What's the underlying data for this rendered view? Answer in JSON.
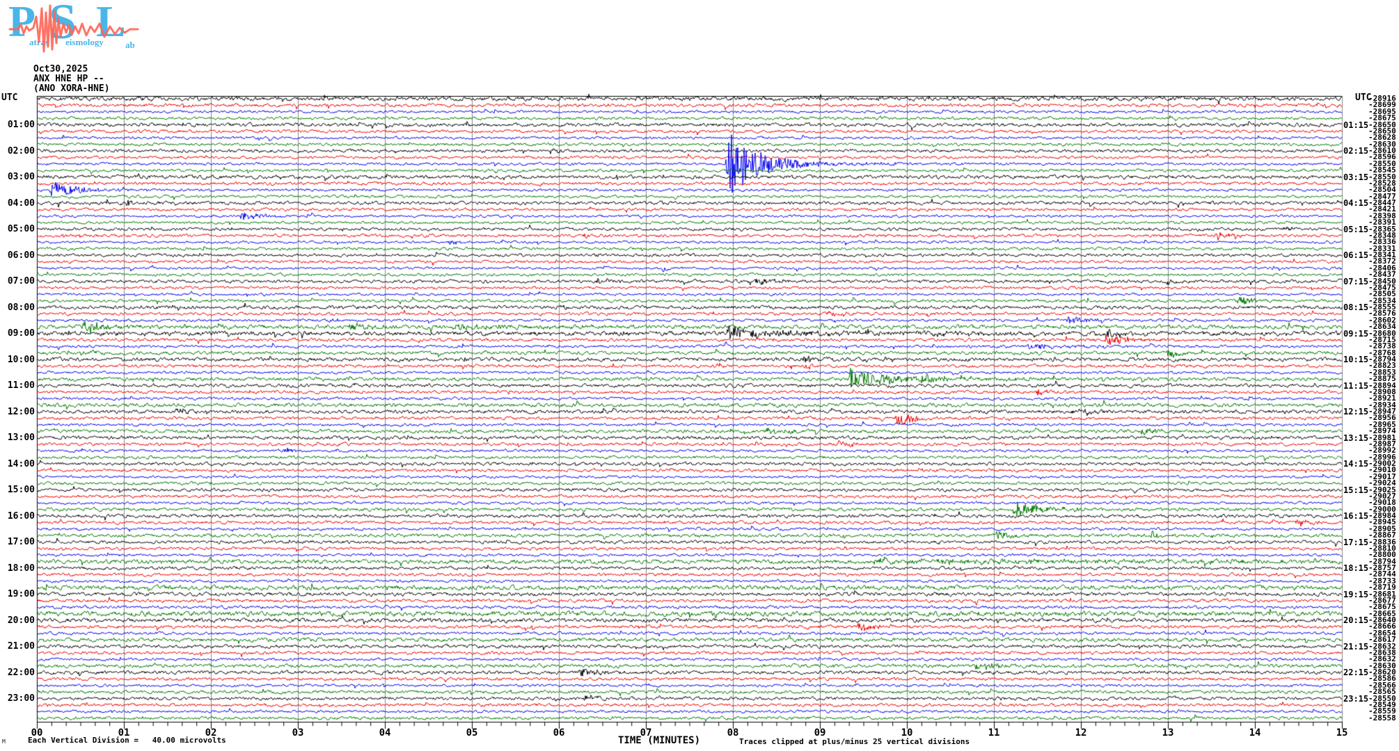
{
  "logo": {
    "letters": [
      "P",
      "S",
      "L"
    ],
    "word_parts": [
      "atras",
      "eismology",
      "ab"
    ]
  },
  "header": {
    "date": "Oct30,2025",
    "station": "ANX HNE HP --",
    "station_alt": "(ANO XORA-HNE)"
  },
  "corner_labels": {
    "utc_left": "UTC",
    "utc_right": "UTC"
  },
  "x_axis": {
    "title": "TIME (MINUTES)",
    "tick_labels": [
      "00",
      "01",
      "02",
      "03",
      "04",
      "05",
      "06",
      "07",
      "08",
      "09",
      "10",
      "11",
      "12",
      "13",
      "14",
      "15"
    ]
  },
  "footer": {
    "mark": "M",
    "scale_note": "Each Vertical Division =   40.00 microvolts",
    "clip_note": "Traces clipped at plus/minus 25 vertical divisions"
  },
  "left_time_labels": [
    "01:00",
    "02:00",
    "03:00",
    "04:00",
    "05:00",
    "06:00",
    "07:00",
    "08:00",
    "09:00",
    "10:00",
    "11:00",
    "12:00",
    "13:00",
    "14:00",
    "15:00",
    "16:00",
    "17:00",
    "18:00",
    "19:00",
    "20:00",
    "21:00",
    "22:00",
    "23:00"
  ],
  "right_time_labels": [
    "01:15",
    "02:15",
    "03:15",
    "04:15",
    "05:15",
    "06:15",
    "07:15",
    "08:15",
    "09:15",
    "10:15",
    "11:15",
    "12:15",
    "13:15",
    "14:15",
    "15:15",
    "16:15",
    "17:15",
    "18:15",
    "19:15",
    "20:15",
    "21:15",
    "22:15",
    "23:15"
  ],
  "chart_data": {
    "type": "line",
    "subtype": "helicorder-seismogram",
    "description": "24-hour webicorder record, 96 traces of 15 minutes each, four traces per hour",
    "trace_count": 96,
    "minutes_per_trace": 15,
    "trace_colors_cycle": [
      "#000000",
      "#ee0000",
      "#0000ee",
      "#007700"
    ],
    "grid_color": "#888888",
    "x_range_minutes": [
      0,
      15
    ],
    "minor_tick_seconds": 10,
    "trace_offsets": [
      -28916,
      -28699,
      -28695,
      -28675,
      -28650,
      -28650,
      -28628,
      -28630,
      -28610,
      -28596,
      -28550,
      -28545,
      -28550,
      -28528,
      -28504,
      -28477,
      -28447,
      -28421,
      -28398,
      -28391,
      -28365,
      -28348,
      -28336,
      -28331,
      -28341,
      -28372,
      -28406,
      -28437,
      -28450,
      -28475,
      -28505,
      -28534,
      -28555,
      -28576,
      -28602,
      -28634,
      -28680,
      -28715,
      -28738,
      -28768,
      -28794,
      -28823,
      -28853,
      -28875,
      -28894,
      -28908,
      -28921,
      -28934,
      -28947,
      -28956,
      -28965,
      -28974,
      -28981,
      -28987,
      -28992,
      -28996,
      -29002,
      -29010,
      -29017,
      -29024,
      -29025,
      -29027,
      -29018,
      -29000,
      -28984,
      -28945,
      -28905,
      -28867,
      -28836,
      -28810,
      -28800,
      -28794,
      -28757,
      -28744,
      -28733,
      -28719,
      -28681,
      -28677,
      -28675,
      -28665,
      -28640,
      -28666,
      -28654,
      -28617,
      -28632,
      -28638,
      -28632,
      -28630,
      -28620,
      -28586,
      -28566,
      -28565,
      -28550,
      -28549,
      -28559,
      -28558
    ],
    "noise_amp": [
      2.2,
      1.7,
      1.4,
      1.5,
      1.9,
      1.5,
      1.4,
      1.5,
      1.7,
      1.5,
      1.4,
      1.5,
      1.9,
      1.6,
      1.4,
      1.5,
      1.8,
      1.5,
      1.3,
      1.4,
      1.6,
      1.6,
      1.3,
      1.5,
      1.6,
      1.5,
      1.3,
      1.5,
      1.7,
      1.5,
      1.3,
      1.6,
      1.9,
      1.6,
      1.4,
      2.2,
      2.4,
      1.7,
      1.5,
      1.8,
      2.0,
      1.7,
      1.4,
      1.9,
      1.8,
      1.6,
      1.5,
      2.0,
      1.9,
      1.6,
      1.4,
      1.8,
      1.8,
      1.6,
      1.4,
      1.6,
      1.7,
      1.6,
      1.3,
      1.6,
      1.7,
      1.6,
      1.4,
      1.8,
      1.8,
      1.6,
      1.4,
      1.8,
      1.7,
      1.6,
      1.4,
      2.2,
      1.7,
      1.6,
      1.4,
      2.4,
      1.9,
      1.7,
      1.6,
      2.6,
      2.1,
      1.7,
      1.5,
      2.0,
      1.8,
      1.6,
      1.4,
      1.9,
      1.8,
      1.6,
      1.4,
      1.7,
      1.7,
      1.6,
      1.4,
      1.6
    ],
    "events": [
      {
        "trace": 8,
        "t0": 5.9,
        "amp": 3,
        "decay": 0.15
      },
      {
        "trace": 10,
        "t0": 7.95,
        "amp": 46,
        "decay": 0.3,
        "coda_amp": 5,
        "coda_decay": 1.1
      },
      {
        "trace": 14,
        "t0": 0.18,
        "amp": 13,
        "decay": 0.3
      },
      {
        "trace": 16,
        "t0": 0.25,
        "amp": 4,
        "decay": 0.06
      },
      {
        "trace": 16,
        "t0": 1.05,
        "amp": 4,
        "decay": 0.06
      },
      {
        "trace": 18,
        "t0": 2.35,
        "amp": 6,
        "decay": 0.22
      },
      {
        "trace": 20,
        "t0": 14.35,
        "amp": 4,
        "decay": 0.1
      },
      {
        "trace": 21,
        "t0": 0.3,
        "amp": 4,
        "decay": 0.1
      },
      {
        "trace": 21,
        "t0": 6.3,
        "amp": 4,
        "decay": 0.1
      },
      {
        "trace": 21,
        "t0": 13.55,
        "amp": 6,
        "decay": 0.2
      },
      {
        "trace": 22,
        "t0": 4.75,
        "amp": 4,
        "decay": 0.12
      },
      {
        "trace": 26,
        "t0": 7.2,
        "amp": 4,
        "decay": 0.15
      },
      {
        "trace": 28,
        "t0": 6.45,
        "amp": 5,
        "decay": 0.15
      },
      {
        "trace": 28,
        "t0": 8.2,
        "amp": 5,
        "decay": 0.3
      },
      {
        "trace": 28,
        "t0": 13.0,
        "amp": 4,
        "decay": 0.12
      },
      {
        "trace": 31,
        "t0": 13.8,
        "amp": 7,
        "decay": 0.2
      },
      {
        "trace": 32,
        "t0": 1.5,
        "amp": 4,
        "decay": 0.12
      },
      {
        "trace": 32,
        "t0": 6.05,
        "amp": 4,
        "decay": 0.1
      },
      {
        "trace": 33,
        "t0": 9.1,
        "amp": 6,
        "decay": 0.15
      },
      {
        "trace": 34,
        "t0": 3.4,
        "amp": 4,
        "decay": 0.1
      },
      {
        "trace": 34,
        "t0": 11.85,
        "amp": 6,
        "decay": 0.2
      },
      {
        "trace": 35,
        "t0": 0.55,
        "amp": 9,
        "decay": 0.25
      },
      {
        "trace": 35,
        "t0": 3.6,
        "amp": 6,
        "decay": 0.2
      },
      {
        "trace": 35,
        "t0": 4.8,
        "amp": 3,
        "decay": 0.9
      },
      {
        "trace": 36,
        "t0": 7.95,
        "amp": 8,
        "decay": 0.3,
        "coda_amp": 3,
        "coda_decay": 2.5
      },
      {
        "trace": 36,
        "t0": 12.3,
        "amp": 7,
        "decay": 0.2
      },
      {
        "trace": 37,
        "t0": 12.3,
        "amp": 10,
        "decay": 0.25
      },
      {
        "trace": 38,
        "t0": 11.4,
        "amp": 4,
        "decay": 0.4
      },
      {
        "trace": 39,
        "t0": 0.5,
        "amp": 4,
        "decay": 0.15
      },
      {
        "trace": 39,
        "t0": 13.0,
        "amp": 5,
        "decay": 0.15
      },
      {
        "trace": 40,
        "t0": 8.8,
        "amp": 5,
        "decay": 0.2
      },
      {
        "trace": 41,
        "t0": 8.85,
        "amp": 4,
        "decay": 0.1
      },
      {
        "trace": 43,
        "t0": 9.35,
        "amp": 14,
        "decay": 0.3,
        "coda_amp": 4,
        "coda_decay": 1.0
      },
      {
        "trace": 43,
        "t0": 10.15,
        "amp": 6,
        "decay": 0.4
      },
      {
        "trace": 45,
        "t0": 11.5,
        "amp": 5,
        "decay": 0.12
      },
      {
        "trace": 48,
        "t0": 1.6,
        "amp": 5,
        "decay": 0.15
      },
      {
        "trace": 48,
        "t0": 11.9,
        "amp": 3,
        "decay": 0.3
      },
      {
        "trace": 49,
        "t0": 9.9,
        "amp": 14,
        "decay": 0.15,
        "bias": -0.8
      },
      {
        "trace": 51,
        "t0": 8.4,
        "amp": 4,
        "decay": 0.25
      },
      {
        "trace": 51,
        "t0": 12.7,
        "amp": 5,
        "decay": 0.15
      },
      {
        "trace": 53,
        "t0": 9.2,
        "amp": 5,
        "decay": 0.2
      },
      {
        "trace": 54,
        "t0": 2.85,
        "amp": 5,
        "decay": 0.1
      },
      {
        "trace": 57,
        "t0": 10.15,
        "amp": 4,
        "decay": 0.15
      },
      {
        "trace": 63,
        "t0": 11.25,
        "amp": 12,
        "decay": 0.3
      },
      {
        "trace": 65,
        "t0": 14.5,
        "amp": 5,
        "decay": 0.15
      },
      {
        "trace": 67,
        "t0": 11.05,
        "amp": 7,
        "decay": 0.15
      },
      {
        "trace": 67,
        "t0": 12.82,
        "amp": 8,
        "decay": 0.05
      },
      {
        "trace": 71,
        "t0": 9.5,
        "amp": 2.5,
        "decay": 5
      },
      {
        "trace": 81,
        "t0": 8.85,
        "amp": 3,
        "decay": 0.15
      },
      {
        "trace": 81,
        "t0": 9.45,
        "amp": 7,
        "decay": 0.2
      },
      {
        "trace": 87,
        "t0": 10.8,
        "amp": 6,
        "decay": 0.2
      },
      {
        "trace": 88,
        "t0": 6.25,
        "amp": 7,
        "decay": 0.2
      },
      {
        "trace": 92,
        "t0": 6.3,
        "amp": 4,
        "decay": 0.1
      }
    ]
  }
}
